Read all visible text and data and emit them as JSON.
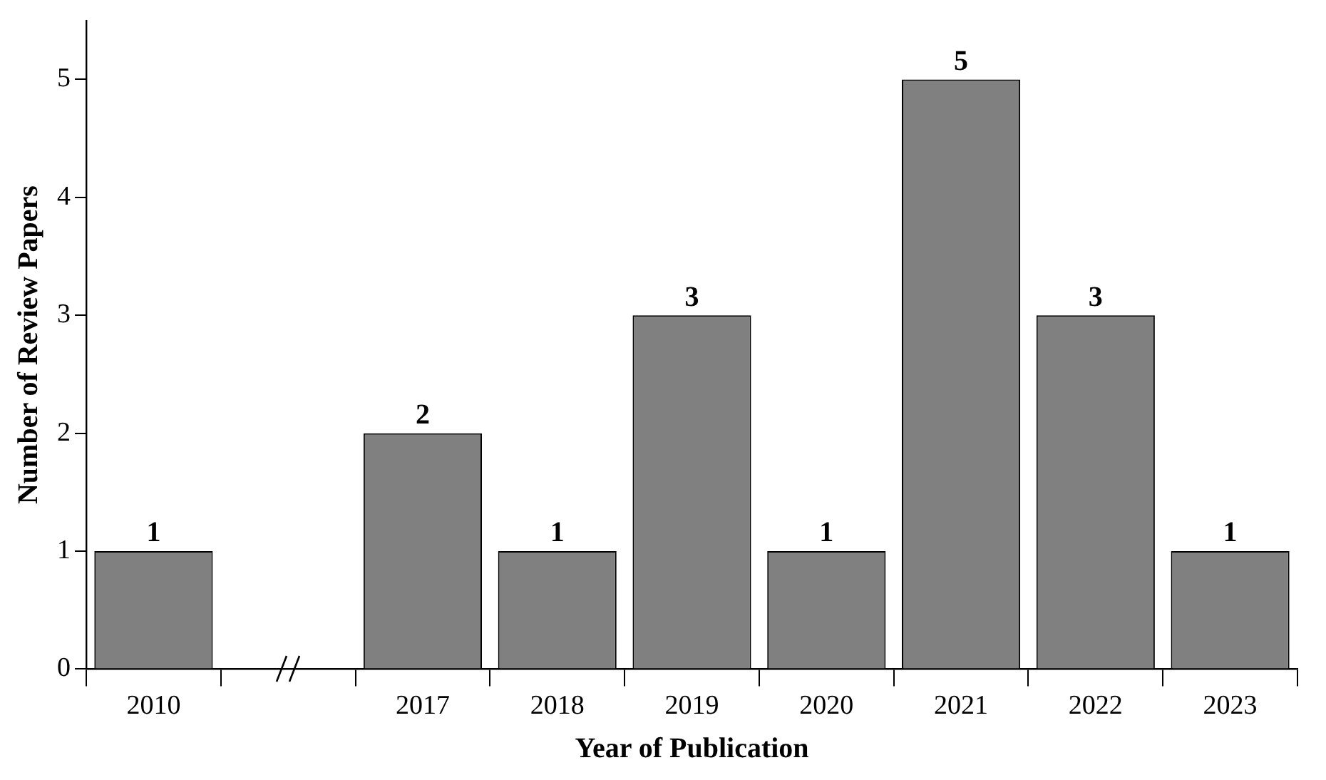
{
  "chart_data": {
    "type": "bar",
    "xlabel": "Year of Publication",
    "ylabel": "Number of Review Papers",
    "categories": [
      "2010",
      null,
      "2017",
      "2018",
      "2019",
      "2020",
      "2021",
      "2022",
      "2023"
    ],
    "values": [
      1,
      null,
      2,
      1,
      3,
      1,
      5,
      3,
      1
    ],
    "color": "#808080",
    "ylim": [
      0,
      5.5
    ],
    "yticks": [
      0,
      1,
      2,
      3,
      4,
      5
    ],
    "grid": false,
    "legend": false,
    "data_labels": true
  }
}
